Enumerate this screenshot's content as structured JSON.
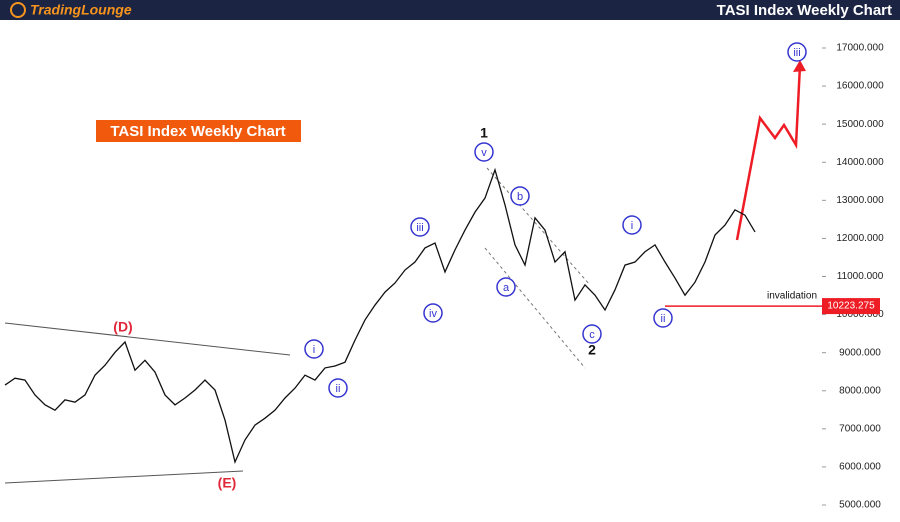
{
  "header": {
    "logo": "TradingLounge",
    "title": "TASI Index Weekly Chart"
  },
  "chart_data": {
    "type": "line",
    "title": "TASI Index Weekly Chart",
    "series": [
      {
        "color": "#111111",
        "values": [
          8150,
          8330,
          8280,
          7890,
          7630,
          7490,
          7760,
          7700,
          7890,
          8410,
          8670,
          9010,
          9280,
          8540,
          8800,
          8490,
          7890,
          7630,
          7810,
          8020,
          8280,
          8020,
          7230,
          6130,
          6710,
          7100,
          7280,
          7490,
          7810,
          8070,
          8410,
          8280,
          8600,
          8650,
          8750,
          9330,
          9860,
          10250,
          10590,
          10830,
          11170,
          11380,
          11750,
          11880,
          11120,
          11700,
          12220,
          12690,
          13060,
          13800,
          12880,
          11830,
          11300,
          12540,
          12220,
          11380,
          11650,
          10380,
          10780,
          10510,
          10120,
          10650,
          11300,
          11380,
          11650,
          11830,
          11380,
          10960,
          10510,
          10850,
          11380,
          12090,
          12350,
          12750,
          12610,
          12170
        ]
      }
    ],
    "ylim": [
      4554,
      17735
    ],
    "yticks": [
      {
        "value": 5000,
        "label": "5000.000"
      },
      {
        "value": 6000,
        "label": "6000.000"
      },
      {
        "value": 7000,
        "label": "7000.000"
      },
      {
        "value": 8000,
        "label": "8000.000"
      },
      {
        "value": 9000,
        "label": "9000.000"
      },
      {
        "value": 10000,
        "label": "10000.000"
      },
      {
        "value": 11000,
        "label": "11000.000"
      },
      {
        "value": 12000,
        "label": "12000.000"
      },
      {
        "value": 13000,
        "label": "13000.000"
      },
      {
        "value": 14000,
        "label": "14000.000"
      },
      {
        "value": 15000,
        "label": "15000.000"
      },
      {
        "value": 16000,
        "label": "16000.000"
      },
      {
        "value": 17000,
        "label": "17000.000"
      }
    ],
    "invalidation": {
      "label": "invalidation",
      "value": 10223.275,
      "color": "#ee1c25"
    },
    "annotations": [
      {
        "text": "1",
        "color": "#111111",
        "circled": false
      },
      {
        "text": "v",
        "color": "#3535d0",
        "circled": true
      },
      {
        "text": "b",
        "color": "#3535d0",
        "circled": true
      },
      {
        "text": "iii",
        "color": "#3535d0",
        "circled": true
      },
      {
        "text": "iv",
        "color": "#3535d0",
        "circled": true
      },
      {
        "text": "a",
        "color": "#3535d0",
        "circled": true
      },
      {
        "text": "c",
        "color": "#3535d0",
        "circled": true
      },
      {
        "text": "2",
        "color": "#111111",
        "circled": false
      },
      {
        "text": "i",
        "color": "#3535d0",
        "circled": true
      },
      {
        "text": "ii",
        "color": "#3535d0",
        "circled": true
      },
      {
        "text": "i",
        "color": "#3535d0",
        "circled": true
      },
      {
        "text": "ii",
        "color": "#3535d0",
        "circled": true
      },
      {
        "text": "(D)",
        "color": "#e0283a",
        "circled": false
      },
      {
        "text": "(E)",
        "color": "#e0283a",
        "circled": false
      },
      {
        "text": "iii",
        "color": "#3535d0",
        "circled": true
      }
    ]
  }
}
